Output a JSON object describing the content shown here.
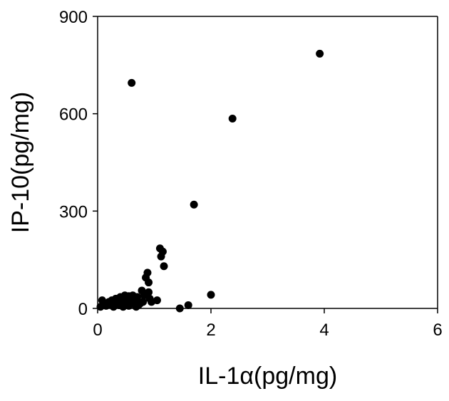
{
  "chart_data": {
    "type": "scatter",
    "title": "",
    "xlabel": "IL-1α(pg/mg)",
    "ylabel": "IP-10(pg/mg)",
    "xlim": [
      0,
      6
    ],
    "ylim": [
      0,
      900
    ],
    "xticks": [
      0,
      2,
      4,
      6
    ],
    "yticks": [
      0,
      300,
      600,
      900
    ],
    "grid": false,
    "legend": "none",
    "marker_color": "#000000",
    "series": [
      {
        "x": [
          0.05,
          0.08,
          0.1,
          0.12,
          0.15,
          0.2,
          0.22,
          0.25,
          0.28,
          0.3,
          0.32,
          0.35,
          0.38,
          0.4,
          0.42,
          0.45,
          0.45,
          0.48,
          0.5,
          0.52,
          0.55,
          0.55,
          0.58,
          0.6,
          0.6,
          0.62,
          0.65,
          0.68,
          0.7,
          0.72,
          0.75,
          0.78,
          0.8,
          0.82,
          0.85,
          0.88,
          0.9,
          0.9,
          0.92,
          0.95,
          1.05,
          1.1,
          1.12,
          1.15,
          1.17,
          1.45,
          1.6,
          1.7,
          2.0,
          2.38,
          3.92
        ],
        "y": [
          5,
          25,
          15,
          10,
          8,
          20,
          12,
          25,
          5,
          15,
          30,
          20,
          10,
          35,
          18,
          25,
          5,
          40,
          12,
          30,
          38,
          8,
          22,
          695,
          15,
          40,
          28,
          5,
          35,
          10,
          15,
          55,
          20,
          40,
          95,
          110,
          80,
          50,
          30,
          20,
          25,
          185,
          160,
          175,
          130,
          0,
          10,
          320,
          42,
          585,
          785
        ]
      }
    ]
  }
}
